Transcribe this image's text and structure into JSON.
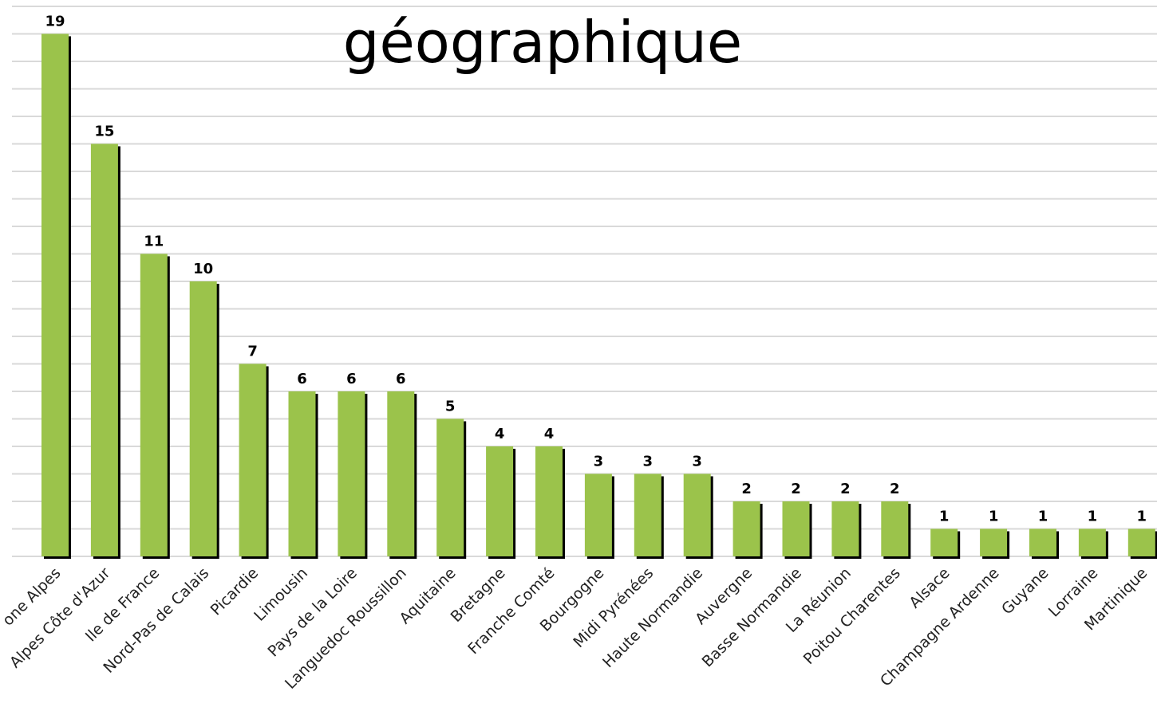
{
  "chart_data": {
    "type": "bar",
    "title": "géographique",
    "categories": [
      "one Alpes",
      "Alpes Côte d'Azur",
      "Ile de France",
      "Nord-Pas de Calais",
      "Picardie",
      "Limousin",
      "Pays de la Loire",
      "Languedoc Roussillon",
      "Aquitaine",
      "Bretagne",
      "Franche Comté",
      "Bourgogne",
      "Midi Pyrénées",
      "Haute Normandie",
      "Auvergne",
      "Basse Normandie",
      "La Réunion",
      "Poitou Charentes",
      "Alsace",
      "Champagne Ardenne",
      "Guyane",
      "Lorraine",
      "Martinique"
    ],
    "values": [
      19,
      15,
      11,
      10,
      7,
      6,
      6,
      6,
      5,
      4,
      4,
      3,
      3,
      3,
      2,
      2,
      2,
      2,
      1,
      1,
      1,
      1,
      1
    ],
    "color": "#9bc34b",
    "ylim": [
      0,
      20
    ],
    "yticks": [
      0,
      1,
      2,
      3,
      4,
      5,
      6,
      7,
      8,
      9,
      10,
      11,
      12,
      13,
      14,
      15,
      16,
      17,
      18,
      19,
      20
    ],
    "grid": true
  }
}
